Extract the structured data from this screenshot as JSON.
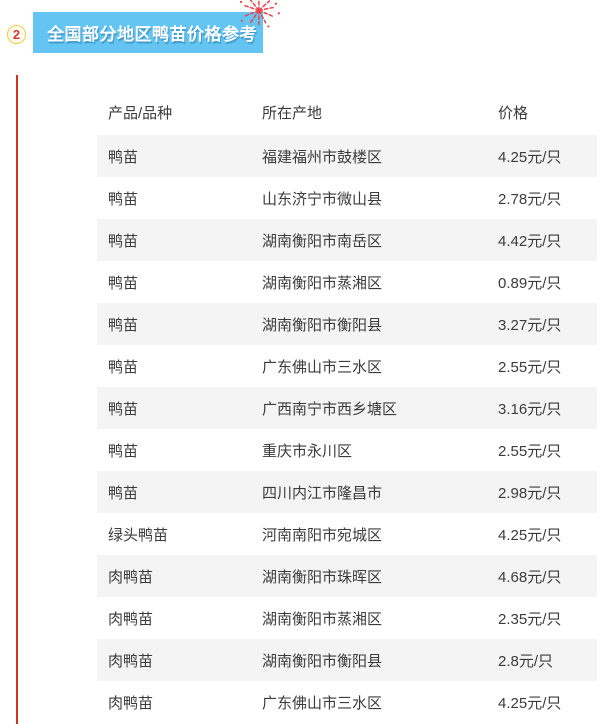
{
  "badge": {
    "number": "2"
  },
  "banner": {
    "title": "全国部分地区鸭苗价格参考",
    "bg_color": "#64c5f2",
    "text_color": "#ffffff"
  },
  "decoration": {
    "firework_color": "#e8444b",
    "accent_line_color": "#d2331c"
  },
  "table": {
    "stripe_color": "#f4f4f4",
    "headers": {
      "product": "产品/品种",
      "origin": "所在产地",
      "price": "价格"
    },
    "rows": [
      {
        "product": "鸭苗",
        "origin": "福建福州市鼓楼区",
        "price": "4.25元/只"
      },
      {
        "product": "鸭苗",
        "origin": "山东济宁市微山县",
        "price": "2.78元/只"
      },
      {
        "product": "鸭苗",
        "origin": "湖南衡阳市南岳区",
        "price": "4.42元/只"
      },
      {
        "product": "鸭苗",
        "origin": "湖南衡阳市蒸湘区",
        "price": "0.89元/只"
      },
      {
        "product": "鸭苗",
        "origin": "湖南衡阳市衡阳县",
        "price": "3.27元/只"
      },
      {
        "product": "鸭苗",
        "origin": "广东佛山市三水区",
        "price": "2.55元/只"
      },
      {
        "product": "鸭苗",
        "origin": "广西南宁市西乡塘区",
        "price": "3.16元/只"
      },
      {
        "product": "鸭苗",
        "origin": "重庆市永川区",
        "price": "2.55元/只"
      },
      {
        "product": "鸭苗",
        "origin": "四川内江市隆昌市",
        "price": "2.98元/只"
      },
      {
        "product": "绿头鸭苗",
        "origin": "河南南阳市宛城区",
        "price": "4.25元/只"
      },
      {
        "product": "肉鸭苗",
        "origin": "湖南衡阳市珠晖区",
        "price": "4.68元/只"
      },
      {
        "product": "肉鸭苗",
        "origin": "湖南衡阳市蒸湘区",
        "price": "2.35元/只"
      },
      {
        "product": "肉鸭苗",
        "origin": "湖南衡阳市衡阳县",
        "price": "2.8元/只"
      },
      {
        "product": "肉鸭苗",
        "origin": "广东佛山市三水区",
        "price": "4.25元/只"
      }
    ]
  }
}
